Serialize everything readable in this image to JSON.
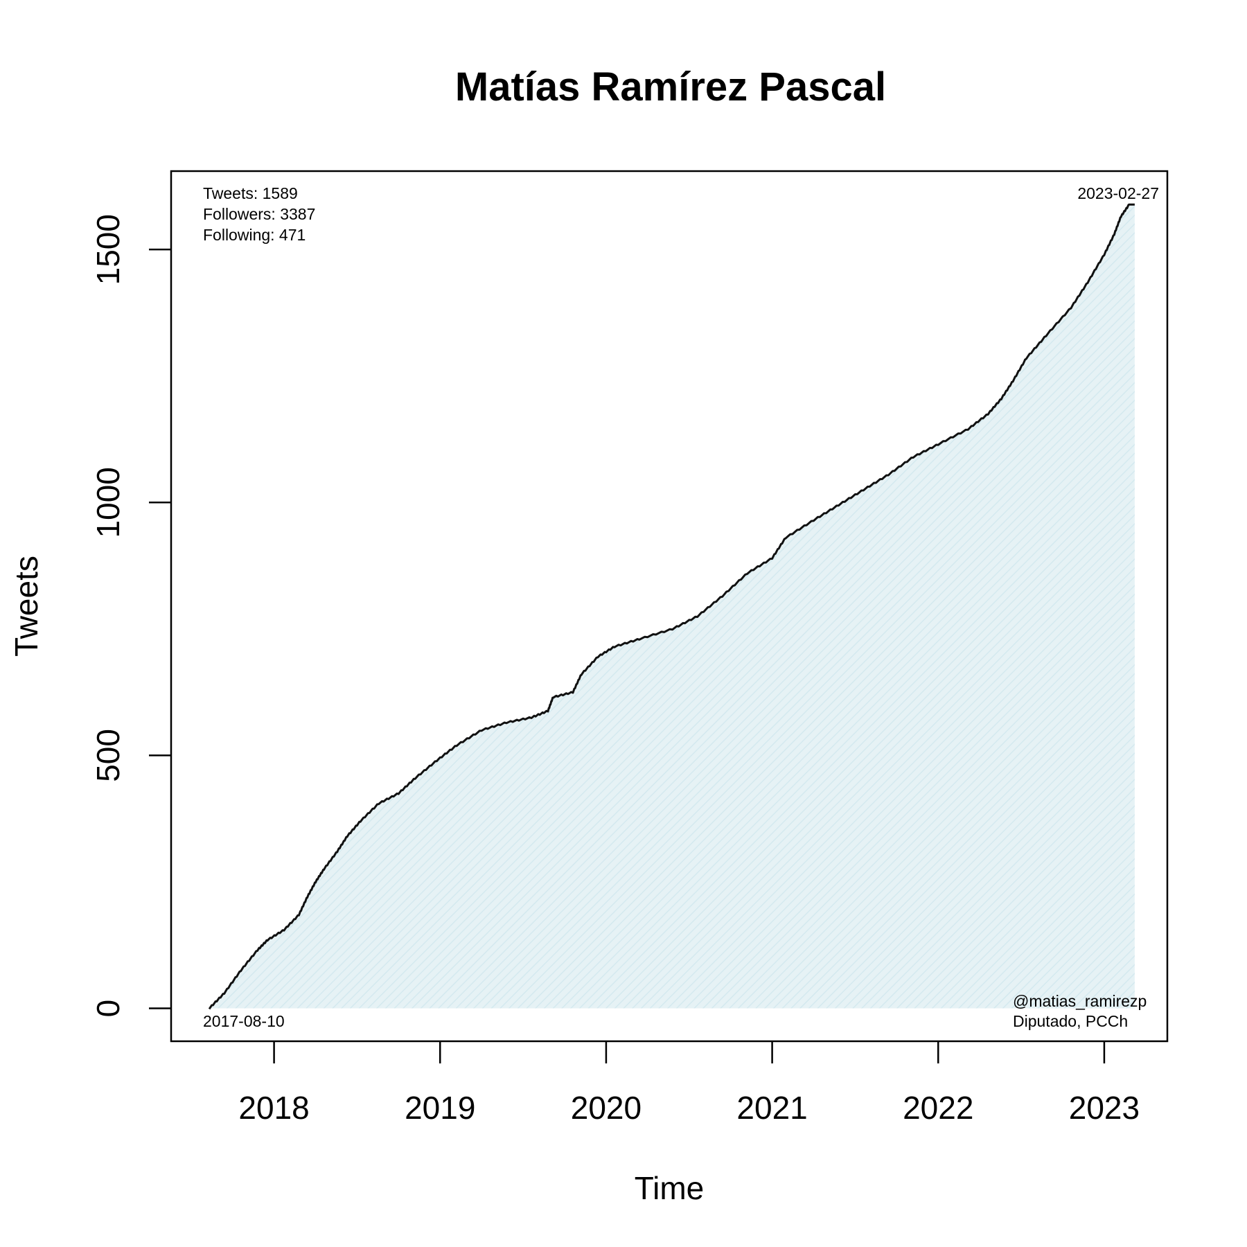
{
  "chart_data": {
    "type": "area",
    "title": "Matías Ramírez Pascal",
    "xlabel": "Time",
    "ylabel": "Tweets",
    "xlim": [
      2017.38,
      2023.38
    ],
    "ylim": [
      -65,
      1655
    ],
    "x_ticks": [
      2018,
      2019,
      2020,
      2021,
      2022,
      2023
    ],
    "x_tick_labels": [
      "2018",
      "2019",
      "2020",
      "2021",
      "2022",
      "2023"
    ],
    "y_ticks": [
      0,
      500,
      1000,
      1500
    ],
    "y_tick_labels": [
      "0",
      "500",
      "1000",
      "1500"
    ],
    "grid": false,
    "legend": "none",
    "colors": {
      "line": "#111111",
      "fill": "#e6f2f5",
      "frame": "#000000"
    },
    "stats": {
      "tweets": "Tweets: 1589",
      "followers": "Followers: 3387",
      "following": "Following: 471"
    },
    "start_date": "2017-08-10",
    "end_date": "2023-02-27",
    "handle": "@matias_ramirezp",
    "description": "Diputado, PCCh",
    "series": [
      {
        "x": [
          2017.61,
          2017.7,
          2017.8,
          2017.9,
          2017.96,
          2018.06,
          2018.15,
          2018.2,
          2018.25,
          2018.3,
          2018.38,
          2018.44,
          2018.52,
          2018.63,
          2018.75,
          2018.85,
          2018.98,
          2019.1,
          2019.25,
          2019.4,
          2019.55,
          2019.65,
          2019.68,
          2019.8,
          2019.85,
          2019.95,
          2020.05,
          2020.2,
          2020.4,
          2020.55,
          2020.7,
          2020.85,
          2021.0,
          2021.08,
          2021.25,
          2021.4,
          2021.55,
          2021.7,
          2021.85,
          2022.0,
          2022.18,
          2022.3,
          2022.38,
          2022.45,
          2022.53,
          2022.65,
          2022.8,
          2022.9,
          2023.0,
          2023.06,
          2023.1,
          2023.15
        ],
        "y": [
          0,
          30,
          75,
          115,
          135,
          155,
          185,
          220,
          250,
          275,
          310,
          340,
          370,
          405,
          425,
          455,
          490,
          520,
          550,
          565,
          575,
          588,
          615,
          625,
          660,
          695,
          715,
          730,
          750,
          775,
          815,
          860,
          890,
          930,
          965,
          995,
          1025,
          1055,
          1090,
          1115,
          1145,
          1175,
          1205,
          1240,
          1285,
          1330,
          1385,
          1435,
          1490,
          1530,
          1565,
          1589
        ]
      }
    ]
  }
}
